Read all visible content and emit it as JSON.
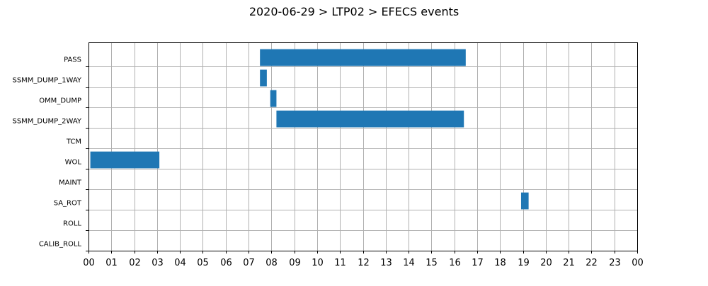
{
  "chart_data": {
    "type": "bar",
    "title": "2020-06-29 > LTP02 > EFECS events",
    "xlabel": "",
    "ylabel": "",
    "grid": true,
    "orientation": "horizontal-timeline",
    "bar_color": "#1f77b4",
    "xlim": [
      0,
      24
    ],
    "x_ticks": [
      0,
      1,
      2,
      3,
      4,
      5,
      6,
      7,
      8,
      9,
      10,
      11,
      12,
      13,
      14,
      15,
      16,
      17,
      18,
      19,
      20,
      21,
      22,
      23,
      24
    ],
    "x_tick_labels": [
      "00",
      "01",
      "02",
      "03",
      "04",
      "05",
      "06",
      "07",
      "08",
      "09",
      "10",
      "11",
      "12",
      "13",
      "14",
      "15",
      "16",
      "17",
      "18",
      "19",
      "20",
      "21",
      "22",
      "23",
      "00"
    ],
    "categories": [
      "PASS",
      "SSMM_DUMP_1WAY",
      "OMM_DUMP",
      "SSMM_DUMP_2WAY",
      "TCM",
      "WOL",
      "MAINT",
      "SA_ROT",
      "ROLL",
      "CALIB_ROLL"
    ],
    "events": [
      {
        "category": "PASS",
        "start": 7.5,
        "end": 16.5
      },
      {
        "category": "SSMM_DUMP_1WAY",
        "start": 7.5,
        "end": 7.8
      },
      {
        "category": "OMM_DUMP",
        "start": 7.95,
        "end": 8.22
      },
      {
        "category": "SSMM_DUMP_2WAY",
        "start": 8.22,
        "end": 16.42
      },
      {
        "category": "WOL",
        "start": 0.08,
        "end": 3.1
      },
      {
        "category": "SA_ROT",
        "start": 18.92,
        "end": 19.25
      }
    ]
  }
}
